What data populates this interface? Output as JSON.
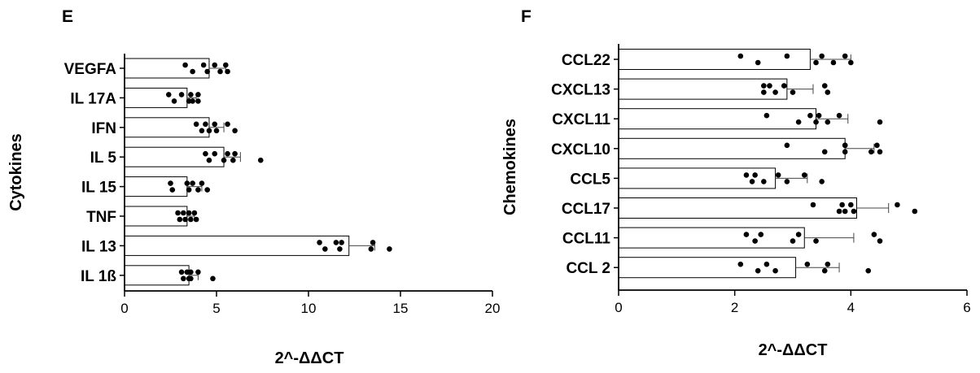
{
  "chart_data": [
    {
      "type": "bar",
      "panel": "E",
      "ylabel": "Cytokines",
      "xlabel": "2^-ΔΔCT",
      "categories": [
        "VEGFA",
        "IL 17A",
        "IFN",
        "IL 5",
        "IL 15",
        "TNF",
        "IL 13",
        "IL 1ß"
      ],
      "values": [
        4.6,
        3.4,
        4.6,
        5.4,
        3.4,
        3.4,
        12.2,
        3.5
      ],
      "errors": [
        0.9,
        0.5,
        0.8,
        0.9,
        0.8,
        0.4,
        1.4,
        0.5
      ],
      "points": [
        [
          3.3,
          3.7,
          4.3,
          4.5,
          4.9,
          5.2,
          5.5,
          5.6
        ],
        [
          2.4,
          2.7,
          3.1,
          3.5,
          3.6,
          3.7,
          4.0,
          4.0
        ],
        [
          3.9,
          4.2,
          4.4,
          4.6,
          4.9,
          5.0,
          5.6,
          6.0
        ],
        [
          4.4,
          4.6,
          4.9,
          5.4,
          5.6,
          5.9,
          6.0,
          7.4
        ],
        [
          2.5,
          2.6,
          3.4,
          3.5,
          3.7,
          4.0,
          4.2,
          4.5
        ],
        [
          2.9,
          3.0,
          3.2,
          3.3,
          3.5,
          3.6,
          3.8,
          3.9
        ],
        [
          10.6,
          10.9,
          11.5,
          11.7,
          11.8,
          13.4,
          13.5,
          14.4
        ],
        [
          3.1,
          3.2,
          3.4,
          3.5,
          3.6,
          3.6,
          4.0,
          4.8
        ]
      ],
      "xlim": [
        0,
        20
      ],
      "xticks": [
        "0",
        "5",
        "10",
        "15",
        "20"
      ]
    },
    {
      "type": "bar",
      "panel": "F",
      "ylabel": "Chemokines",
      "xlabel": "2^-ΔΔCT",
      "categories": [
        "CCL22",
        "CXCL13",
        "CXCL11",
        "CXCL10",
        "CCL5",
        "CCL17",
        "CCL11",
        "CCL 2"
      ],
      "values": [
        3.3,
        2.9,
        3.4,
        3.9,
        2.7,
        4.1,
        3.2,
        3.05
      ],
      "errors": [
        0.7,
        0.45,
        0.55,
        0.5,
        0.55,
        0.55,
        0.85,
        0.75
      ],
      "points": [
        [
          2.1,
          2.4,
          2.9,
          3.4,
          3.5,
          3.7,
          3.9,
          4.0
        ],
        [
          2.5,
          2.5,
          2.6,
          2.7,
          2.85,
          3.0,
          3.55,
          3.6
        ],
        [
          2.55,
          3.1,
          3.3,
          3.4,
          3.45,
          3.6,
          3.8,
          4.5
        ],
        [
          2.9,
          3.55,
          3.9,
          3.9,
          3.9,
          4.35,
          4.45,
          4.5
        ],
        [
          2.2,
          2.3,
          2.35,
          2.5,
          2.75,
          2.9,
          3.2,
          3.5
        ],
        [
          3.35,
          3.8,
          3.85,
          3.9,
          4.0,
          4.05,
          4.8,
          5.1
        ],
        [
          2.2,
          2.35,
          2.45,
          3.0,
          3.1,
          3.4,
          4.4,
          4.5
        ],
        [
          2.1,
          2.4,
          2.55,
          2.7,
          3.25,
          3.55,
          3.6,
          4.3
        ]
      ],
      "xlim": [
        0,
        6
      ],
      "xticks": [
        "0",
        "2",
        "4",
        "6"
      ]
    }
  ]
}
